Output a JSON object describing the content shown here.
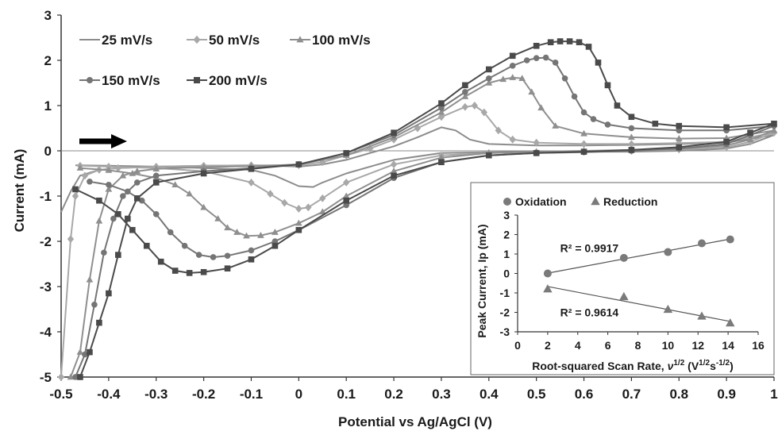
{
  "chart_data": [
    {
      "type": "line",
      "xlabel": "Potential vs Ag/AgCl (V)",
      "ylabel": "Current (mA)",
      "xlim": [
        -0.5,
        1.0
      ],
      "ylim": [
        -5,
        3
      ],
      "xticks": [
        "-0.5",
        "-0.4",
        "-0.3",
        "-0.2",
        "-0.1",
        "0",
        "0.1",
        "0.2",
        "0.3",
        "0.4",
        "0.5",
        "0.6",
        "0.7",
        "0.8",
        "0.9",
        "1"
      ],
      "yticks": [
        "-5",
        "-4",
        "-3",
        "-2",
        "-1",
        "0",
        "1",
        "2",
        "3"
      ],
      "legend_position": "top-left",
      "annotation": "arrow pointing right (scan direction)",
      "series": [
        {
          "name": "25 mV/s",
          "marker": "none",
          "color": "#8c8c8c",
          "x": [
            -0.5,
            -0.48,
            -0.46,
            -0.42,
            -0.38,
            -0.3,
            -0.2,
            -0.1,
            -0.05,
            0.0,
            0.05,
            0.1,
            0.15,
            0.2,
            0.25,
            0.3,
            0.33,
            0.36,
            0.4,
            0.5,
            0.6,
            0.7,
            0.8,
            0.9,
            1.0,
            0.95,
            0.9,
            0.8,
            0.7,
            0.6,
            0.5,
            0.4,
            0.3,
            0.2,
            0.15,
            0.1,
            0.05,
            0.03,
            0.0,
            -0.05,
            -0.1,
            -0.2,
            -0.3,
            -0.4,
            -0.47
          ],
          "y": [
            -1.35,
            -0.9,
            -0.55,
            -0.42,
            -0.38,
            -0.35,
            -0.33,
            -0.32,
            -0.33,
            -0.35,
            -0.3,
            -0.2,
            -0.05,
            0.1,
            0.3,
            0.52,
            0.45,
            0.25,
            0.15,
            0.12,
            0.12,
            0.13,
            0.15,
            0.18,
            0.35,
            0.15,
            0.05,
            0.0,
            -0.02,
            -0.02,
            -0.02,
            -0.03,
            -0.05,
            -0.2,
            -0.35,
            -0.5,
            -0.7,
            -0.8,
            -0.78,
            -0.55,
            -0.42,
            -0.38,
            -0.35,
            -0.33,
            -0.32
          ]
        },
        {
          "name": "50 mV/s",
          "marker": "diamond",
          "color": "#a8a8a8",
          "x": [
            -0.5,
            -0.48,
            -0.47,
            -0.45,
            -0.42,
            -0.38,
            -0.3,
            -0.2,
            -0.1,
            0.0,
            0.05,
            0.1,
            0.15,
            0.2,
            0.25,
            0.3,
            0.35,
            0.37,
            0.39,
            0.42,
            0.45,
            0.5,
            0.6,
            0.7,
            0.8,
            0.9,
            1.0,
            0.95,
            0.9,
            0.8,
            0.7,
            0.6,
            0.5,
            0.4,
            0.3,
            0.2,
            0.1,
            0.05,
            0.02,
            0.0,
            -0.03,
            -0.06,
            -0.1,
            -0.2,
            -0.3,
            -0.4,
            -0.46
          ],
          "y": [
            -5.0,
            -1.95,
            -1.0,
            -0.55,
            -0.42,
            -0.38,
            -0.35,
            -0.33,
            -0.32,
            -0.32,
            -0.25,
            -0.1,
            0.05,
            0.25,
            0.5,
            0.75,
            0.97,
            1.0,
            0.85,
            0.45,
            0.25,
            0.18,
            0.15,
            0.15,
            0.17,
            0.2,
            0.4,
            0.2,
            0.08,
            0.03,
            0.0,
            -0.02,
            -0.03,
            -0.05,
            -0.1,
            -0.3,
            -0.7,
            -1.05,
            -1.25,
            -1.28,
            -1.15,
            -0.95,
            -0.7,
            -0.45,
            -0.38,
            -0.35,
            -0.33
          ]
        },
        {
          "name": "100 mV/s",
          "marker": "triangle",
          "color": "#8f8f8f",
          "x": [
            -0.48,
            -0.46,
            -0.44,
            -0.42,
            -0.4,
            -0.37,
            -0.34,
            -0.3,
            -0.2,
            -0.1,
            0.0,
            0.1,
            0.2,
            0.3,
            0.35,
            0.4,
            0.43,
            0.45,
            0.47,
            0.49,
            0.51,
            0.54,
            0.6,
            0.7,
            0.8,
            0.9,
            1.0,
            0.95,
            0.9,
            0.8,
            0.7,
            0.6,
            0.5,
            0.4,
            0.3,
            0.2,
            0.1,
            0.05,
            0.0,
            -0.05,
            -0.08,
            -0.11,
            -0.13,
            -0.15,
            -0.17,
            -0.2,
            -0.23,
            -0.26,
            -0.3,
            -0.35,
            -0.4,
            -0.46
          ],
          "y": [
            -5.0,
            -4.45,
            -2.85,
            -1.55,
            -0.85,
            -0.55,
            -0.45,
            -0.4,
            -0.36,
            -0.34,
            -0.3,
            -0.1,
            0.3,
            0.85,
            1.2,
            1.5,
            1.58,
            1.62,
            1.6,
            1.3,
            0.95,
            0.55,
            0.38,
            0.3,
            0.27,
            0.28,
            0.45,
            0.25,
            0.12,
            0.05,
            0.02,
            0.0,
            -0.02,
            -0.05,
            -0.15,
            -0.45,
            -1.0,
            -1.35,
            -1.6,
            -1.8,
            -1.87,
            -1.88,
            -1.8,
            -1.7,
            -1.5,
            -1.25,
            -0.95,
            -0.75,
            -0.6,
            -0.5,
            -0.43,
            -0.38
          ]
        },
        {
          "name": "150 mV/s",
          "marker": "circle",
          "color": "#757575",
          "x": [
            -0.47,
            -0.45,
            -0.43,
            -0.41,
            -0.39,
            -0.37,
            -0.34,
            -0.3,
            -0.2,
            -0.1,
            0.0,
            0.1,
            0.2,
            0.3,
            0.35,
            0.4,
            0.45,
            0.48,
            0.5,
            0.52,
            0.54,
            0.56,
            0.58,
            0.6,
            0.62,
            0.65,
            0.7,
            0.8,
            0.9,
            1.0,
            0.95,
            0.9,
            0.8,
            0.7,
            0.6,
            0.5,
            0.4,
            0.3,
            0.2,
            0.1,
            0.0,
            -0.05,
            -0.1,
            -0.15,
            -0.18,
            -0.21,
            -0.24,
            -0.27,
            -0.3,
            -0.33,
            -0.36,
            -0.4,
            -0.44
          ],
          "y": [
            -5.0,
            -4.5,
            -3.4,
            -2.25,
            -1.5,
            -1.0,
            -0.7,
            -0.55,
            -0.45,
            -0.38,
            -0.3,
            -0.05,
            0.35,
            0.95,
            1.3,
            1.6,
            1.88,
            2.0,
            2.05,
            2.06,
            1.95,
            1.6,
            1.2,
            0.85,
            0.7,
            0.58,
            0.5,
            0.45,
            0.45,
            0.55,
            0.35,
            0.15,
            0.05,
            0.0,
            -0.03,
            -0.05,
            -0.1,
            -0.25,
            -0.6,
            -1.2,
            -1.75,
            -2.0,
            -2.2,
            -2.32,
            -2.35,
            -2.3,
            -2.1,
            -1.8,
            -1.4,
            -1.1,
            -0.9,
            -0.75,
            -0.68
          ]
        },
        {
          "name": "200 mV/s",
          "marker": "square",
          "color": "#4a4a4a",
          "x": [
            -0.46,
            -0.44,
            -0.42,
            -0.4,
            -0.38,
            -0.36,
            -0.34,
            -0.3,
            -0.2,
            -0.1,
            0.0,
            0.1,
            0.2,
            0.3,
            0.35,
            0.4,
            0.45,
            0.5,
            0.53,
            0.55,
            0.57,
            0.59,
            0.61,
            0.63,
            0.65,
            0.67,
            0.7,
            0.75,
            0.8,
            0.9,
            1.0,
            0.95,
            0.9,
            0.8,
            0.7,
            0.6,
            0.5,
            0.4,
            0.3,
            0.2,
            0.1,
            0.0,
            -0.05,
            -0.1,
            -0.15,
            -0.2,
            -0.23,
            -0.26,
            -0.29,
            -0.32,
            -0.35,
            -0.38,
            -0.42,
            -0.47
          ],
          "y": [
            -5.0,
            -4.45,
            -3.8,
            -3.15,
            -2.3,
            -1.5,
            -1.05,
            -0.7,
            -0.5,
            -0.4,
            -0.3,
            -0.05,
            0.4,
            1.05,
            1.45,
            1.8,
            2.1,
            2.32,
            2.4,
            2.42,
            2.42,
            2.4,
            2.3,
            1.95,
            1.45,
            1.0,
            0.75,
            0.6,
            0.55,
            0.52,
            0.6,
            0.4,
            0.2,
            0.08,
            0.02,
            -0.02,
            -0.05,
            -0.1,
            -0.25,
            -0.55,
            -1.1,
            -1.75,
            -2.1,
            -2.4,
            -2.6,
            -2.68,
            -2.7,
            -2.65,
            -2.45,
            -2.1,
            -1.75,
            -1.4,
            -1.1,
            -0.85
          ]
        }
      ]
    },
    {
      "type": "scatter",
      "inset": true,
      "xlabel": "Root-squared Scan Rate, ν1/2 (V1/2s-1/2)",
      "ylabel": "Peak Current, Ip (mA)",
      "xlim": [
        0,
        16
      ],
      "ylim": [
        -3,
        3
      ],
      "xticks": [
        "0",
        "2",
        "4",
        "6",
        "8",
        "10",
        "12",
        "14",
        "16"
      ],
      "yticks": [
        "-3",
        "-2",
        "-1",
        "0",
        "1",
        "2",
        "3"
      ],
      "legend_position": "top",
      "series": [
        {
          "name": "Oxidation",
          "marker": "circle",
          "color": "#7a7a7a",
          "x": [
            2.0,
            7.07,
            10.0,
            12.25,
            14.14
          ],
          "y": [
            0.0,
            0.8,
            1.1,
            1.55,
            1.75
          ]
        },
        {
          "name": "Reduction",
          "marker": "triangle",
          "color": "#7a7a7a",
          "x": [
            2.0,
            7.07,
            10.0,
            12.25,
            14.14
          ],
          "y": [
            -0.8,
            -1.2,
            -1.85,
            -2.2,
            -2.55
          ]
        }
      ],
      "annotations": [
        {
          "text": "R² = 0.9917",
          "x": 2.2,
          "y": 1.3
        },
        {
          "text": "R² = 0.9614",
          "x": 2.2,
          "y": -2.0
        }
      ]
    }
  ],
  "labels": {
    "inset_xlabel_main": "Root-squared Scan Rate, ",
    "inset_xlabel_nu": "ν",
    "inset_xlabel_sup1": "1/2",
    "inset_xlabel_mid": " (V",
    "inset_xlabel_sup2": "1/2",
    "inset_xlabel_s": "s",
    "inset_xlabel_sup3": "-1/2",
    "inset_xlabel_end": ")"
  }
}
